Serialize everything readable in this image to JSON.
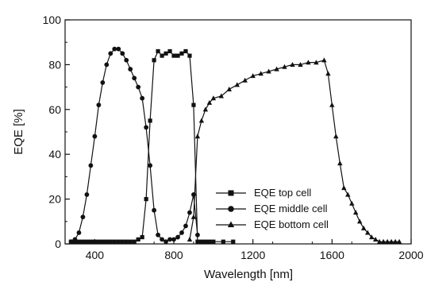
{
  "chart_data": {
    "type": "line",
    "title": "",
    "xlabel": "Wavelength [nm]",
    "ylabel": "EQE [%]",
    "xlim": [
      250,
      2000
    ],
    "ylim": [
      0,
      100
    ],
    "xticks": [
      400,
      800,
      1200,
      1600,
      2000
    ],
    "yticks": [
      0,
      20,
      40,
      60,
      80,
      100
    ],
    "grid": false,
    "legend_position": "lower-middle",
    "series": [
      {
        "name": "EQE top cell",
        "marker": "square",
        "x": [
          280,
          300,
          320,
          340,
          360,
          380,
          400,
          420,
          440,
          460,
          480,
          500,
          520,
          540,
          560,
          580,
          600,
          620,
          640,
          660,
          680,
          700,
          720,
          740,
          760,
          780,
          800,
          820,
          840,
          860,
          880,
          900,
          920,
          940,
          960,
          980,
          1000,
          1050,
          1100
        ],
        "y": [
          1,
          1,
          1,
          1,
          1,
          1,
          1,
          1,
          1,
          1,
          1,
          1,
          1,
          1,
          1,
          1,
          1,
          2,
          3,
          20,
          55,
          82,
          86,
          84,
          85,
          86,
          84,
          84,
          85,
          86,
          84,
          62,
          1,
          1,
          1,
          1,
          1,
          1,
          1
        ]
      },
      {
        "name": "EQE middle cell",
        "marker": "circle",
        "x": [
          280,
          300,
          320,
          340,
          360,
          380,
          400,
          420,
          440,
          460,
          480,
          500,
          520,
          540,
          560,
          580,
          600,
          620,
          640,
          660,
          680,
          700,
          720,
          740,
          760,
          780,
          800,
          820,
          840,
          860,
          880,
          900,
          920
        ],
        "y": [
          1,
          2,
          5,
          12,
          22,
          35,
          48,
          62,
          72,
          80,
          85,
          87,
          87,
          85,
          82,
          78,
          74,
          70,
          65,
          52,
          35,
          15,
          4,
          2,
          1,
          2,
          2,
          3,
          5,
          8,
          14,
          22,
          4
        ]
      },
      {
        "name": "EQE bottom cell",
        "marker": "triangle",
        "x": [
          880,
          900,
          920,
          940,
          960,
          980,
          1000,
          1040,
          1080,
          1120,
          1160,
          1200,
          1240,
          1280,
          1320,
          1360,
          1400,
          1440,
          1480,
          1520,
          1560,
          1580,
          1600,
          1620,
          1640,
          1660,
          1680,
          1700,
          1720,
          1740,
          1760,
          1780,
          1800,
          1820,
          1840,
          1860,
          1880,
          1900,
          1920,
          1940
        ],
        "y": [
          2,
          12,
          48,
          55,
          60,
          63,
          65,
          66,
          69,
          71,
          73,
          75,
          76,
          77,
          78,
          79,
          80,
          80,
          81,
          81,
          82,
          76,
          62,
          48,
          36,
          25,
          22,
          18,
          14,
          10,
          7,
          5,
          3,
          2,
          1,
          1,
          1,
          1,
          1,
          1
        ]
      }
    ]
  }
}
